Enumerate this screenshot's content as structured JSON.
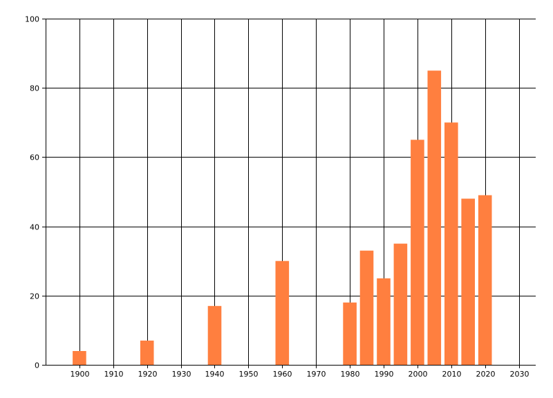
{
  "chart_data": {
    "type": "bar",
    "title": "",
    "xlabel": "",
    "ylabel": "",
    "xlim": [
      1890,
      2035
    ],
    "ylim": [
      0,
      100
    ],
    "xticks": [
      1900,
      1910,
      1920,
      1930,
      1940,
      1950,
      1960,
      1970,
      1980,
      1990,
      2000,
      2010,
      2020,
      2030
    ],
    "yticks": [
      0,
      20,
      40,
      60,
      80,
      100
    ],
    "grid": true,
    "bar_color": "#ff7f3f",
    "gridline_color": "#000000",
    "bar_width_years": 4,
    "series": [
      {
        "x": [
          1900,
          1920,
          1940,
          1960,
          1980,
          1985,
          1990,
          1995,
          2000,
          2005,
          2010,
          2015,
          2020
        ],
        "values": [
          4,
          7,
          17,
          30,
          18,
          33,
          25,
          35,
          65,
          85,
          70,
          48,
          49
        ]
      }
    ]
  }
}
